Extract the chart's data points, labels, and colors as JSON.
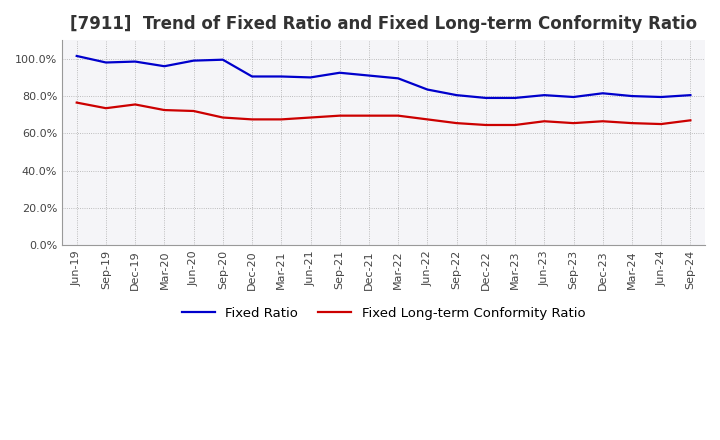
{
  "title": "[7911]  Trend of Fixed Ratio and Fixed Long-term Conformity Ratio",
  "x_labels": [
    "Jun-19",
    "Sep-19",
    "Dec-19",
    "Mar-20",
    "Jun-20",
    "Sep-20",
    "Dec-20",
    "Mar-21",
    "Jun-21",
    "Sep-21",
    "Dec-21",
    "Mar-22",
    "Jun-22",
    "Sep-22",
    "Dec-22",
    "Mar-23",
    "Jun-23",
    "Sep-23",
    "Dec-23",
    "Mar-24",
    "Jun-24",
    "Sep-24"
  ],
  "fixed_ratio": [
    101.5,
    98.0,
    98.5,
    96.0,
    99.0,
    99.5,
    90.5,
    90.5,
    90.0,
    92.5,
    91.0,
    89.5,
    83.5,
    80.5,
    79.0,
    79.0,
    80.5,
    79.5,
    81.5,
    80.0,
    79.5,
    80.5
  ],
  "fixed_lt_ratio": [
    76.5,
    73.5,
    75.5,
    72.5,
    72.0,
    68.5,
    67.5,
    67.5,
    68.5,
    69.5,
    69.5,
    69.5,
    67.5,
    65.5,
    64.5,
    64.5,
    66.5,
    65.5,
    66.5,
    65.5,
    65.0,
    67.0
  ],
  "fixed_ratio_color": "#0000cc",
  "fixed_lt_ratio_color": "#cc0000",
  "ylim": [
    0,
    110
  ],
  "yticks": [
    0,
    20,
    40,
    60,
    80,
    100
  ],
  "background_color": "#ffffff",
  "plot_bg_color": "#f5f5f8",
  "grid_color": "#aaaaaa",
  "title_color": "#333333",
  "title_fontsize": 12,
  "legend_fontsize": 9.5,
  "tick_fontsize": 8,
  "line_width": 1.6
}
